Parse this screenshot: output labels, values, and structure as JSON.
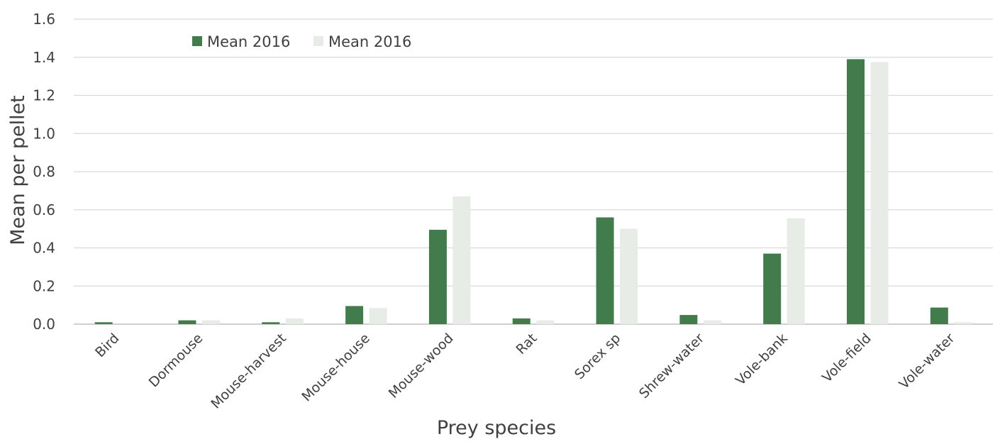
{
  "chart_data": {
    "type": "bar",
    "title": "",
    "xlabel": "Prey species",
    "ylabel": "Mean per pellet",
    "ylim": [
      0,
      1.6
    ],
    "yticks": [
      "0.0",
      "0.2",
      "0.4",
      "0.6",
      "0.8",
      "1.0",
      "1.2",
      "1.4",
      "1.6"
    ],
    "grid": true,
    "legend_position": "top-left",
    "categories": [
      "Bird",
      "Dormouse",
      "Mouse-harvest",
      "Mouse-house",
      "Mouse-wood",
      "Rat",
      "Sorex sp",
      "Shrew-water",
      "Vole-bank",
      "Vole-field",
      "Vole-water"
    ],
    "series": [
      {
        "name": "Mean 2016",
        "color": "#437c4c",
        "values": [
          0.01,
          0.02,
          0.01,
          0.095,
          0.495,
          0.03,
          0.56,
          0.048,
          0.37,
          1.39,
          0.087
        ]
      },
      {
        "name": "Mean 2016",
        "color": "#e8ece6",
        "values": [
          0.0,
          0.02,
          0.03,
          0.085,
          0.67,
          0.02,
          0.5,
          0.02,
          0.555,
          1.375,
          0.01
        ]
      }
    ]
  }
}
